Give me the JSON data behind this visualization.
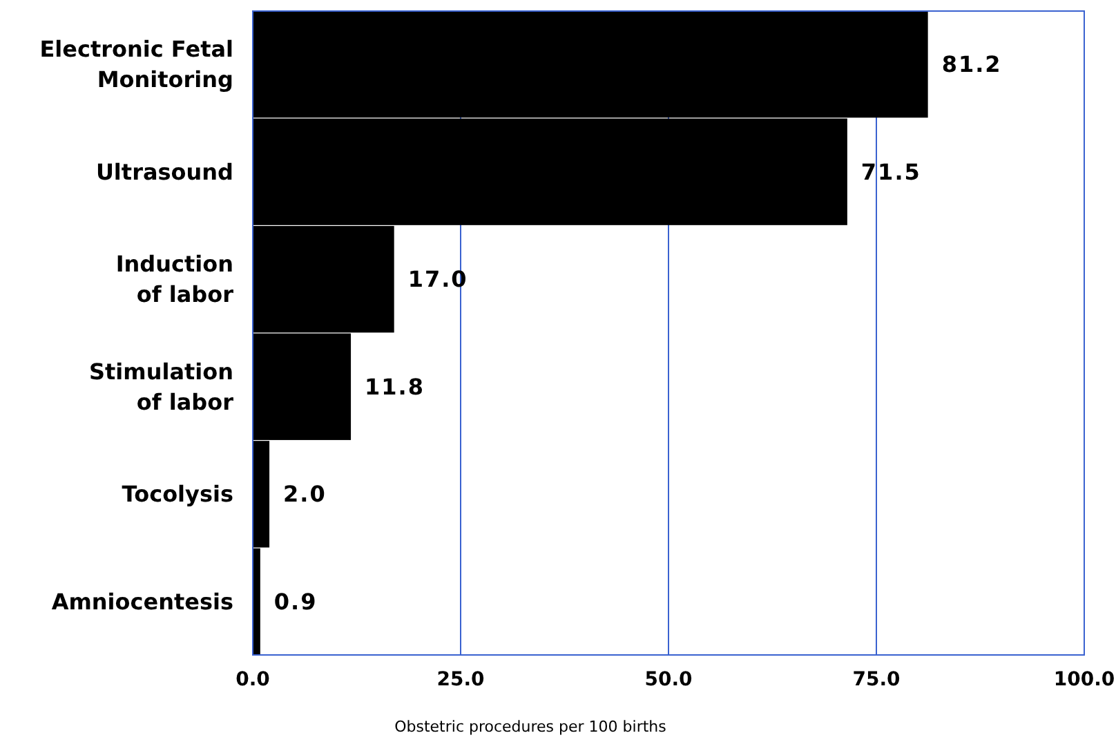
{
  "chart_data": {
    "type": "bar",
    "orientation": "horizontal",
    "xlabel": "Obstetric procedures per 100 births",
    "categories": [
      "Electronic Fetal\nMonitoring",
      "Ultrasound",
      "Induction\nof labor",
      "Stimulation\nof labor",
      "Tocolysis",
      "Amniocentesis"
    ],
    "values": [
      81.2,
      71.5,
      17.0,
      11.8,
      2.0,
      0.9
    ],
    "value_labels": [
      "81.2",
      "71.5",
      "17.0",
      "11.8",
      "2.0",
      "0.9"
    ],
    "color": "#000000",
    "xlim": [
      0,
      100
    ],
    "xticks": [
      {
        "value": 0,
        "label": "0.0"
      },
      {
        "value": 25,
        "label": "25.0"
      },
      {
        "value": 50,
        "label": "50.0"
      },
      {
        "value": 75,
        "label": "75.0"
      },
      {
        "value": 100,
        "label": "100.0"
      }
    ],
    "grid": "x"
  }
}
